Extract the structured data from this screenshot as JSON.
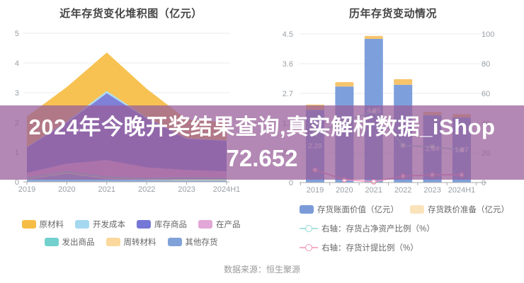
{
  "banner": {
    "line1": "2024年今晚开奖结果查询,真实解析数据_iShop",
    "line2": "72.652",
    "text_color": "#ffffff",
    "bg_color": "rgba(152,94,154,0.74)"
  },
  "source_note": "数据来源：恒生聚源",
  "chart_data": [
    {
      "type": "area",
      "stacked": true,
      "title": "近年存货变化堆积图（亿元）",
      "categories": [
        "2019",
        "2020",
        "2021",
        "2022",
        "2023",
        "2024H1"
      ],
      "ylabel": "亿元",
      "ylim": [
        0,
        5
      ],
      "yticks": [
        0,
        1,
        2,
        3,
        4,
        5
      ],
      "grid": true,
      "legend_position": "bottom",
      "series": [
        {
          "name": "其他存货",
          "color": "#80a2d8",
          "values": [
            0.08,
            0.28,
            0.1,
            0.07,
            0.05,
            0.05
          ]
        },
        {
          "name": "周转材料",
          "color": "#fbd89c",
          "values": [
            0.02,
            0.03,
            0.03,
            0.02,
            0.02,
            0.02
          ]
        },
        {
          "name": "发出商品",
          "color": "#72d1cd",
          "values": [
            0.05,
            0.05,
            0.05,
            0.04,
            0.08,
            0.06
          ]
        },
        {
          "name": "在产品",
          "color": "#e2a7d6",
          "values": [
            0.15,
            0.25,
            0.55,
            0.35,
            0.25,
            0.22
          ]
        },
        {
          "name": "库存商品",
          "color": "#7577d6",
          "values": [
            0.86,
            1.38,
            2.25,
            1.65,
            1.05,
            1.03
          ]
        },
        {
          "name": "开发成本",
          "color": "#a5d8f0",
          "values": [
            0.02,
            0.05,
            0.08,
            0.04,
            0.02,
            0.02
          ]
        },
        {
          "name": "原材料",
          "color": "#f6bd45",
          "values": [
            1.02,
            1.15,
            1.29,
            0.96,
            0.63,
            0.6
          ]
        }
      ],
      "legend_order": [
        "原材料",
        "开发成本",
        "库存商品",
        "在产品",
        "发出商品",
        "周转材料",
        "其他存货"
      ]
    },
    {
      "type": "bar",
      "title": "历年存货变动情况",
      "categories": [
        "2019",
        "2020",
        "2021",
        "2022",
        "2023",
        "2024H1"
      ],
      "left_axis": {
        "lim": [
          0,
          4.5
        ],
        "ticks": [
          "0",
          "0.9",
          "1.8",
          "2.7",
          "3.6",
          "4.5"
        ]
      },
      "right_axis": {
        "lim": [
          0,
          100
        ],
        "ticks": [
          "0",
          "20",
          "40",
          "60",
          "80",
          "100"
        ]
      },
      "grid": true,
      "legend_position": "bottom",
      "series": [
        {
          "name": "存货账面价值（亿元）",
          "kind": "bar",
          "axis": "left",
          "color": "#7da0dc",
          "legend_color": "#7b9bd8",
          "values": [
            2.2,
            2.91,
            4.35,
            2.96,
            2.04,
            1.97
          ],
          "labels": [
            "2.20",
            "",
            "4.35",
            "",
            "2.04",
            "1.97"
          ]
        },
        {
          "name": "存货跌价准备（亿元）",
          "kind": "bar",
          "axis": "left",
          "color": "#f7c46c",
          "legend_color": "#fae3bb",
          "values": [
            0.16,
            0.13,
            0.09,
            0.17,
            0.1,
            0.1
          ]
        },
        {
          "name": "右轴：存货占净资产比例（%）",
          "kind": "line",
          "axis": "right",
          "color": "#8fd9d4",
          "values": [
            33,
            41,
            48,
            25,
            24,
            22
          ]
        },
        {
          "name": "右轴：存货计提比例（%）",
          "kind": "line",
          "axis": "right",
          "color": "#f092b8",
          "values": [
            8.5,
            2,
            0.5,
            4.3,
            5.2,
            5.2
          ]
        }
      ]
    }
  ]
}
